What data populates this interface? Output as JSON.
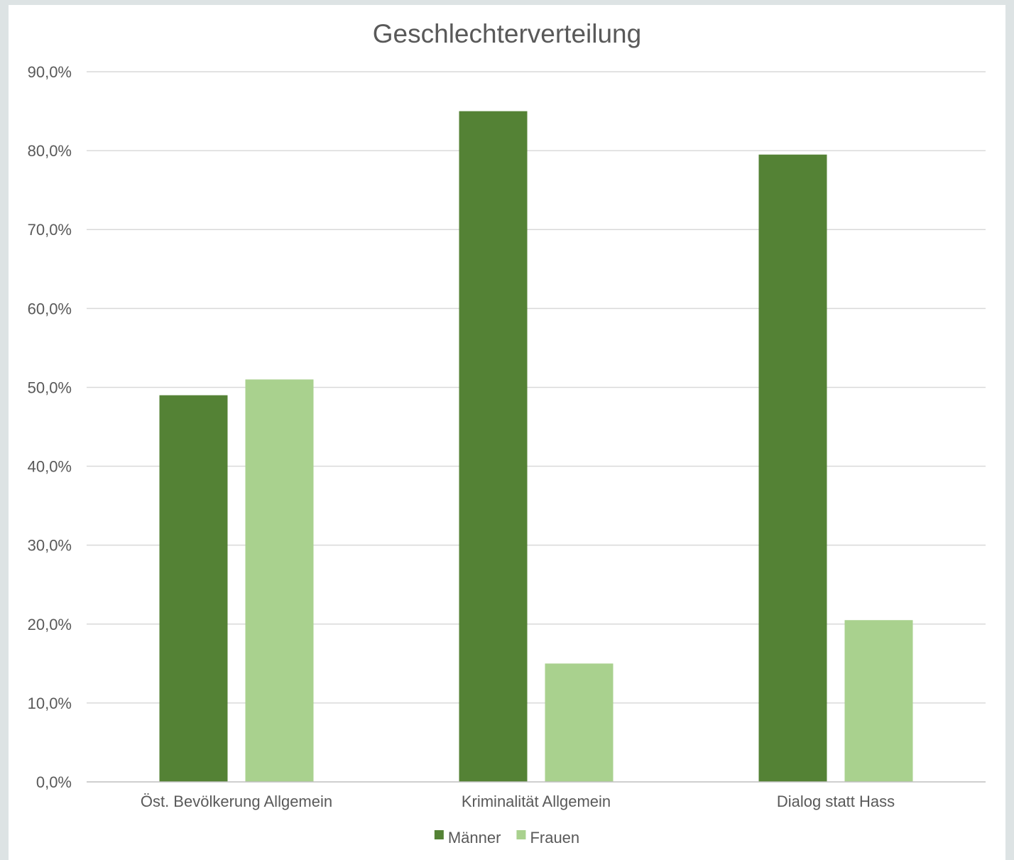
{
  "chart_data": {
    "type": "bar",
    "title": "Geschlechterverteilung",
    "xlabel": "",
    "ylabel": "",
    "categories": [
      "Öst. Bevölkerung Allgemein",
      "Kriminalität Allgemein",
      "Dialog statt Hass"
    ],
    "series": [
      {
        "name": "Männer",
        "values": [
          49.0,
          85.0,
          79.5
        ],
        "color": "#548235"
      },
      {
        "name": "Frauen",
        "values": [
          51.0,
          15.0,
          20.5
        ],
        "color": "#a9d18e"
      }
    ],
    "ylim": [
      0,
      90
    ],
    "y_ticks": [
      0,
      10,
      20,
      30,
      40,
      50,
      60,
      70,
      80,
      90
    ],
    "y_tick_labels": [
      "0,0%",
      "10,0%",
      "20,0%",
      "30,0%",
      "40,0%",
      "50,0%",
      "60,0%",
      "70,0%",
      "80,0%",
      "90,0%"
    ],
    "grid": true,
    "legend_position": "bottom-center"
  }
}
